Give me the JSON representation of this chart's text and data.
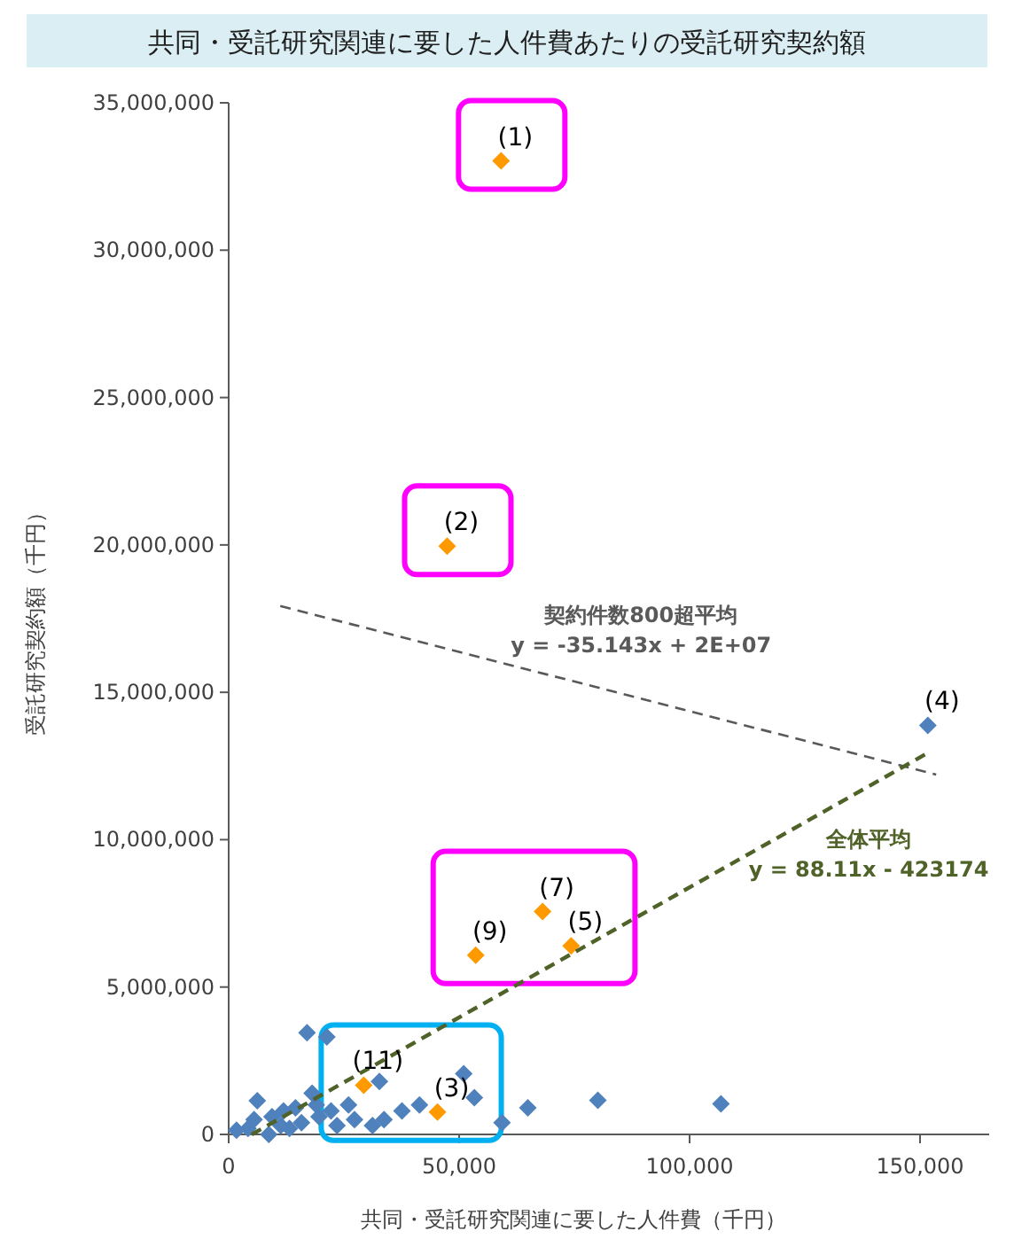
{
  "chart_data": {
    "type": "scatter",
    "title": "共同・受託研究関連に要した人件費あたりの受託研究契約額",
    "xlabel": "共同・受託研究関連に要した人件費（千円）",
    "ylabel": "受託研究契約額（千円）",
    "xlim": [
      0,
      165000
    ],
    "ylim": [
      0,
      35000000
    ],
    "xticks": [
      0,
      {
        "value": 50000,
        "label": "50,000"
      },
      {
        "value": 100000,
        "label": "100,000"
      },
      {
        "value": 150000,
        "label": "150,000"
      }
    ],
    "yticks": [
      0,
      {
        "value": 5000000,
        "label": "5,000,000"
      },
      {
        "value": 10000000,
        "label": "10,000,000"
      },
      {
        "value": 15000000,
        "label": "15,000,000"
      },
      {
        "value": 20000000,
        "label": "20,000,000"
      },
      {
        "value": 25000000,
        "label": "25,000,000"
      },
      {
        "value": 30000000,
        "label": "30,000,000"
      },
      {
        "value": 35000000,
        "label": "35,000,000"
      }
    ],
    "grid": false,
    "marker": "diamond",
    "series": [
      {
        "color": "#4f81bd",
        "x": [
          151700,
          17000,
          21300,
          6200,
          18100,
          32700,
          51000,
          53300,
          64900,
          80100,
          106800,
          59300,
          41400,
          33700,
          1700,
          4200,
          8700,
          9400,
          11900,
          14500,
          15800,
          19600,
          22200,
          26000,
          27300,
          19000,
          23500,
          13200,
          31200,
          37600,
          5500,
          11300
        ],
        "values": [
          13880000,
          3450000,
          3310000,
          1140000,
          1400000,
          1800000,
          2060000,
          1250000,
          900000,
          1160000,
          1040000,
          400000,
          1000000,
          500000,
          140000,
          200000,
          0,
          600000,
          800000,
          900000,
          400000,
          600000,
          800000,
          1000000,
          500000,
          1000000,
          300000,
          200000,
          300000,
          800000,
          500000,
          300000
        ]
      },
      {
        "color": "#ff9900",
        "x": [
          59100,
          47400,
          68100,
          53600,
          74300,
          29300,
          45300
        ],
        "values": [
          33030000,
          19960000,
          7560000,
          6080000,
          6400000,
          1670000,
          760000
        ]
      },
      {
        "type": "line",
        "name": "契約件数800超平均",
        "color": "#595959",
        "line_style": "dashed",
        "marker": "none",
        "x": [
          11200,
          153500
        ],
        "values": [
          17930000,
          12210000
        ]
      },
      {
        "type": "line",
        "name": "全体平均",
        "color": "#4f6228",
        "line_style": "dashed",
        "marker": "none",
        "x": [
          5000,
          152000
        ],
        "values": [
          0,
          12970000
        ]
      }
    ],
    "annotations": [
      {
        "text": "(1)",
        "x": 59100,
        "y": 33030000
      },
      {
        "text": "(2)",
        "x": 47400,
        "y": 19960000
      },
      {
        "text": "(4)",
        "x": 151700,
        "y": 13880000
      },
      {
        "text": "(7)",
        "x": 68100,
        "y": 7560000
      },
      {
        "text": "(9)",
        "x": 53600,
        "y": 6080000
      },
      {
        "text": "(5)",
        "x": 74300,
        "y": 6400000
      },
      {
        "text": "(11)",
        "x": 29300,
        "y": 1670000
      },
      {
        "text": "(3)",
        "x": 45300,
        "y": 760000
      },
      "y = -35.143x + 2E+07",
      "y = 88.11x - 423174"
    ]
  }
}
